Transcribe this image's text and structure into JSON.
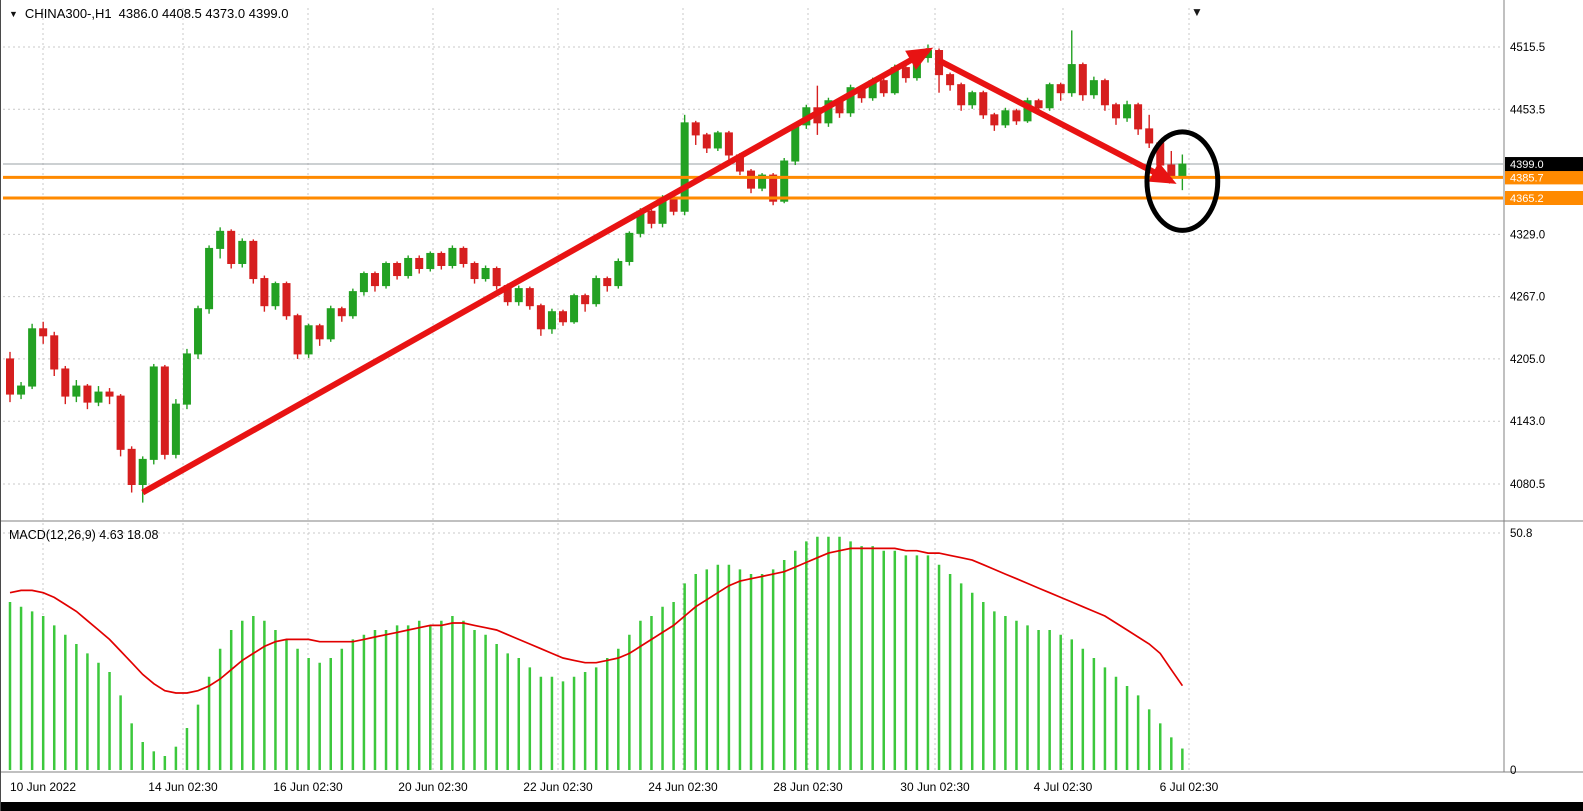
{
  "header": {
    "symbol_timeframe": "CHINA300-,H1",
    "ohlc_text": "4386.0 4408.5 4373.0 4399.0"
  },
  "icons": {
    "symbol_dropdown": "▼",
    "chart_shift_marker": "▼"
  },
  "chart_data": [
    {
      "type": "candlestick",
      "symbol": "CHINA300-",
      "timeframe": "H1",
      "current_bar": {
        "open": 4386.0,
        "high": 4408.5,
        "low": 4373.0,
        "close": 4399.0
      },
      "ylim": [
        4050,
        4545
      ],
      "y_axis_labels": [
        4515.5,
        4453.5,
        4329.0,
        4267.0,
        4205.0,
        4143.0,
        4080.5
      ],
      "price_line": {
        "value": 4399.0,
        "label": "4399.0",
        "tag_bg": "#000000",
        "tag_fg": "#ffffff"
      },
      "horizontal_lines": [
        {
          "value": 4385.7,
          "label": "4385.7",
          "color": "#FF8A00"
        },
        {
          "value": 4365.2,
          "label": "4365.2",
          "color": "#FF8A00"
        }
      ],
      "x_labels": [
        "10 Jun 2022",
        "14 Jun 02:30",
        "16 Jun 02:30",
        "20 Jun 02:30",
        "22 Jun 02:30",
        "24 Jun 02:30",
        "28 Jun 02:30",
        "30 Jun 02:30",
        "4 Jul 02:30",
        "6 Jul 02:30"
      ],
      "colors": {
        "up": "#23A123",
        "down": "#D61F1F",
        "grid": "#c9c9c9",
        "price_line": "#9aa0a6",
        "annotation": "#E81313",
        "ellipse": "#000000"
      },
      "candles": [
        [
          4205,
          4212,
          4162,
          4170
        ],
        [
          4170,
          4182,
          4165,
          4178
        ],
        [
          4178,
          4240,
          4175,
          4235
        ],
        [
          4235,
          4242,
          4220,
          4228
        ],
        [
          4228,
          4232,
          4188,
          4195
        ],
        [
          4195,
          4198,
          4160,
          4168
        ],
        [
          4168,
          4184,
          4162,
          4178
        ],
        [
          4178,
          4180,
          4155,
          4162
        ],
        [
          4162,
          4178,
          4158,
          4172
        ],
        [
          4172,
          4176,
          4160,
          4168
        ],
        [
          4168,
          4170,
          4108,
          4115
        ],
        [
          4115,
          4118,
          4072,
          4080
        ],
        [
          4080,
          4108,
          4062,
          4105
        ],
        [
          4105,
          4200,
          4100,
          4197
        ],
        [
          4197,
          4199,
          4105,
          4110
        ],
        [
          4110,
          4165,
          4106,
          4160
        ],
        [
          4160,
          4215,
          4155,
          4210
        ],
        [
          4210,
          4258,
          4205,
          4255
        ],
        [
          4255,
          4318,
          4250,
          4315
        ],
        [
          4315,
          4336,
          4305,
          4332
        ],
        [
          4332,
          4334,
          4295,
          4300
        ],
        [
          4300,
          4325,
          4296,
          4322
        ],
        [
          4322,
          4324,
          4280,
          4285
        ],
        [
          4285,
          4288,
          4252,
          4258
        ],
        [
          4258,
          4282,
          4254,
          4280
        ],
        [
          4280,
          4282,
          4244,
          4248
        ],
        [
          4248,
          4250,
          4205,
          4210
        ],
        [
          4210,
          4240,
          4206,
          4238
        ],
        [
          4238,
          4240,
          4218,
          4225
        ],
        [
          4225,
          4258,
          4222,
          4255
        ],
        [
          4255,
          4257,
          4242,
          4248
        ],
        [
          4248,
          4275,
          4245,
          4272
        ],
        [
          4272,
          4292,
          4268,
          4290
        ],
        [
          4290,
          4292,
          4272,
          4278
        ],
        [
          4278,
          4302,
          4275,
          4300
        ],
        [
          4300,
          4302,
          4284,
          4288
        ],
        [
          4288,
          4308,
          4285,
          4305
        ],
        [
          4305,
          4308,
          4290,
          4295
        ],
        [
          4295,
          4312,
          4292,
          4310
        ],
        [
          4310,
          4312,
          4294,
          4298
        ],
        [
          4298,
          4318,
          4295,
          4315
        ],
        [
          4315,
          4317,
          4296,
          4300
        ],
        [
          4300,
          4302,
          4280,
          4285
        ],
        [
          4285,
          4298,
          4282,
          4295
        ],
        [
          4295,
          4297,
          4274,
          4278
        ],
        [
          4278,
          4280,
          4258,
          4262
        ],
        [
          4262,
          4278,
          4258,
          4275
        ],
        [
          4275,
          4277,
          4254,
          4258
        ],
        [
          4258,
          4260,
          4228,
          4235
        ],
        [
          4235,
          4255,
          4230,
          4252
        ],
        [
          4252,
          4254,
          4238,
          4242
        ],
        [
          4242,
          4270,
          4240,
          4268
        ],
        [
          4268,
          4270,
          4252,
          4260
        ],
        [
          4260,
          4288,
          4257,
          4285
        ],
        [
          4285,
          4287,
          4272,
          4278
        ],
        [
          4278,
          4305,
          4275,
          4302
        ],
        [
          4302,
          4332,
          4298,
          4330
        ],
        [
          4330,
          4355,
          4326,
          4352
        ],
        [
          4352,
          4354,
          4335,
          4340
        ],
        [
          4340,
          4368,
          4336,
          4365
        ],
        [
          4365,
          4367,
          4348,
          4352
        ],
        [
          4352,
          4448,
          4348,
          4440
        ],
        [
          4440,
          4442,
          4418,
          4428
        ],
        [
          4428,
          4430,
          4410,
          4415
        ],
        [
          4415,
          4432,
          4412,
          4430
        ],
        [
          4430,
          4432,
          4402,
          4408
        ],
        [
          4408,
          4410,
          4388,
          4392
        ],
        [
          4392,
          4394,
          4370,
          4375
        ],
        [
          4375,
          4390,
          4372,
          4388
        ],
        [
          4388,
          4390,
          4358,
          4362
        ],
        [
          4362,
          4405,
          4360,
          4402
        ],
        [
          4402,
          4440,
          4398,
          4438
        ],
        [
          4438,
          4458,
          4434,
          4455
        ],
        [
          4455,
          4477,
          4428,
          4440
        ],
        [
          4440,
          4465,
          4436,
          4462
        ],
        [
          4462,
          4464,
          4445,
          4450
        ],
        [
          4450,
          4478,
          4446,
          4475
        ],
        [
          4475,
          4477,
          4460,
          4465
        ],
        [
          4465,
          4485,
          4462,
          4482
        ],
        [
          4482,
          4484,
          4466,
          4470
        ],
        [
          4470,
          4498,
          4468,
          4495
        ],
        [
          4495,
          4497,
          4480,
          4485
        ],
        [
          4485,
          4508,
          4482,
          4505
        ],
        [
          4505,
          4518,
          4500,
          4512
        ],
        [
          4512,
          4514,
          4470,
          4488
        ],
        [
          4488,
          4490,
          4472,
          4478
        ],
        [
          4478,
          4480,
          4452,
          4458
        ],
        [
          4458,
          4472,
          4454,
          4470
        ],
        [
          4470,
          4472,
          4444,
          4448
        ],
        [
          4448,
          4450,
          4432,
          4438
        ],
        [
          4438,
          4455,
          4435,
          4452
        ],
        [
          4452,
          4454,
          4438,
          4442
        ],
        [
          4442,
          4465,
          4440,
          4462
        ],
        [
          4462,
          4464,
          4450,
          4455
        ],
        [
          4455,
          4480,
          4452,
          4478
        ],
        [
          4478,
          4480,
          4462,
          4470
        ],
        [
          4470,
          4532,
          4466,
          4498
        ],
        [
          4498,
          4500,
          4462,
          4468
        ],
        [
          4468,
          4486,
          4464,
          4482
        ],
        [
          4482,
          4484,
          4452,
          4458
        ],
        [
          4458,
          4460,
          4438,
          4445
        ],
        [
          4445,
          4462,
          4441,
          4458
        ],
        [
          4458,
          4460,
          4428,
          4434
        ],
        [
          4434,
          4448,
          4415,
          4420
        ],
        [
          4420,
          4422,
          4392,
          4398
        ],
        [
          4398,
          4412,
          4381,
          4386
        ],
        [
          4386,
          4408.5,
          4373,
          4399
        ]
      ],
      "annotations": {
        "trend_arrows": [
          {
            "from_bar": 12,
            "from_price": 4072,
            "to_bar": 83,
            "to_price": 4512
          },
          {
            "from_bar": 84,
            "from_price": 4502,
            "to_bar": 105,
            "to_price": 4382
          }
        ],
        "ellipse": {
          "bar": 106,
          "price": 4382,
          "rx_bars": 3.2,
          "ry_price": 49
        }
      }
    },
    {
      "type": "bar",
      "name": "MACD",
      "params": "12,26,9",
      "label": "MACD(12,26,9) 4.63 18.08",
      "current": {
        "macd": 4.63,
        "signal": 18.08
      },
      "ylim": [
        0,
        52.5
      ],
      "y_axis_labels": [
        50.8,
        0
      ],
      "colors": {
        "histogram": "#3CC83C",
        "signal": "#E10000"
      },
      "histogram": [
        36,
        35,
        34,
        33,
        31,
        29,
        27,
        25,
        23,
        21,
        16,
        10,
        6,
        4,
        3,
        5,
        9,
        14,
        20,
        26,
        30,
        32,
        33,
        32,
        30,
        28,
        26,
        24,
        23,
        24,
        26,
        28,
        29,
        30,
        30,
        31,
        31,
        32,
        31,
        32,
        33,
        32,
        30,
        29,
        27,
        25,
        24,
        22,
        20,
        20,
        19,
        20,
        21,
        22,
        24,
        26,
        29,
        32,
        33,
        35,
        36,
        40,
        42,
        43,
        44,
        44,
        43,
        42,
        42,
        43,
        45,
        47,
        49,
        50,
        50,
        50,
        49,
        48,
        48,
        47,
        47,
        46,
        46,
        46,
        44,
        42,
        40,
        38,
        36,
        34,
        33,
        32,
        31,
        30,
        30,
        29,
        28,
        26,
        24,
        22,
        20,
        18,
        16,
        13,
        10,
        7,
        4.6
      ],
      "signal": [
        38,
        38.5,
        38.5,
        38,
        37,
        35.5,
        34,
        32,
        30,
        28,
        25.5,
        23,
        20.5,
        18.5,
        17,
        16.5,
        16.5,
        17,
        18,
        19.5,
        21.5,
        23.5,
        25,
        26.5,
        27.5,
        28,
        28,
        28,
        27.5,
        27.5,
        27.5,
        27.5,
        28,
        28.5,
        29,
        29.5,
        30,
        30.5,
        31,
        31,
        31.5,
        31.5,
        31,
        30.5,
        30,
        29,
        28,
        27,
        26,
        25,
        24,
        23.5,
        23,
        23,
        23.5,
        24,
        25,
        26.5,
        28,
        29.5,
        31,
        33,
        35,
        36.5,
        38,
        39.5,
        40.5,
        41,
        41.5,
        42,
        42.5,
        43.5,
        44.5,
        45.5,
        46.5,
        47,
        47.5,
        47.5,
        47.5,
        47.5,
        47.5,
        47,
        47,
        46.5,
        46.5,
        46,
        45.5,
        45,
        44,
        43,
        42,
        41,
        40,
        39,
        38,
        37,
        36,
        35,
        34,
        33,
        31.5,
        30,
        28.5,
        27,
        25,
        21.5,
        18.08
      ]
    }
  ]
}
